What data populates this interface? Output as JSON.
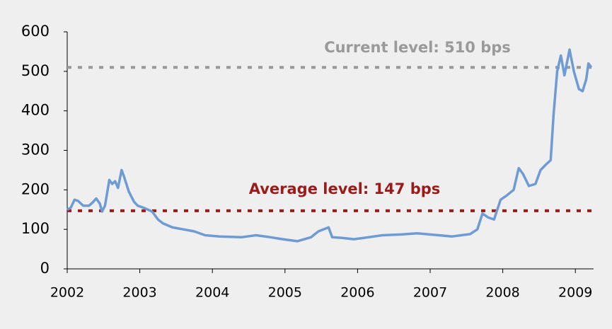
{
  "chart_data": {
    "type": "line",
    "series": [
      {
        "color": "#6e9bd3",
        "x": [
          2002.0,
          2002.05,
          2002.1,
          2002.15,
          2002.22,
          2002.3,
          2002.35,
          2002.4,
          2002.45,
          2002.48,
          2002.52,
          2002.58,
          2002.62,
          2002.66,
          2002.7,
          2002.75,
          2002.78,
          2002.85,
          2002.92,
          2002.97,
          2003.05,
          2003.17,
          2003.25,
          2003.32,
          2003.45,
          2003.6,
          2003.75,
          2003.9,
          2004.1,
          2004.4,
          2004.6,
          2004.8,
          2004.97,
          2005.17,
          2005.36,
          2005.46,
          2005.6,
          2005.65,
          2005.8,
          2005.95,
          2006.15,
          2006.34,
          2006.6,
          2006.82,
          2007.12,
          2007.3,
          2007.55,
          2007.65,
          2007.72,
          2007.8,
          2007.88,
          2007.97,
          2008.05,
          2008.15,
          2008.22,
          2008.28,
          2008.36,
          2008.45,
          2008.52,
          2008.6,
          2008.66,
          2008.7,
          2008.75,
          2008.8,
          2008.85,
          2008.92,
          2008.98,
          2009.05,
          2009.1,
          2009.15,
          2009.18,
          2009.22
        ],
        "values": [
          150,
          155,
          175,
          172,
          160,
          160,
          168,
          178,
          165,
          145,
          160,
          225,
          215,
          222,
          205,
          250,
          235,
          195,
          170,
          160,
          155,
          145,
          125,
          115,
          105,
          100,
          95,
          85,
          82,
          80,
          85,
          80,
          75,
          70,
          80,
          95,
          105,
          80,
          78,
          75,
          80,
          85,
          87,
          90,
          85,
          82,
          88,
          100,
          140,
          130,
          125,
          175,
          185,
          200,
          255,
          240,
          210,
          215,
          250,
          265,
          275,
          390,
          500,
          540,
          490,
          555,
          500,
          455,
          450,
          480,
          520,
          510
        ]
      }
    ],
    "reference_lines": [
      {
        "value": 510,
        "label": "Current level: 510 bps",
        "color": "#9a9a9a"
      },
      {
        "value": 147,
        "label": "Average level: 147 bps",
        "color": "#9b1b1b"
      }
    ],
    "xlim": [
      2002,
      2009.25
    ],
    "xticks": [
      2002,
      2003,
      2004,
      2005,
      2006,
      2007,
      2008,
      2009
    ],
    "ylim": [
      0,
      600
    ],
    "yticks": [
      0,
      100,
      200,
      300,
      400,
      500,
      600
    ]
  }
}
